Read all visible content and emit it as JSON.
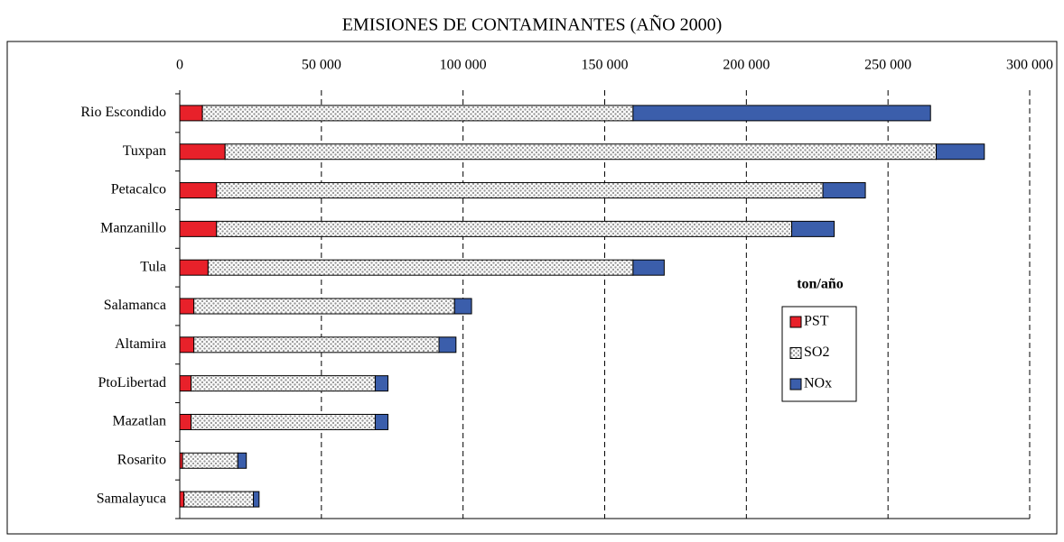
{
  "chart_data": {
    "type": "stacked_barh",
    "title": "EMISIONES DE CONTAMINANTES (AÑO 2000)",
    "categories": [
      "Rio Escondido",
      "Tuxpan",
      "Petacalco",
      "Manzanillo",
      "Tula",
      "Salamanca",
      "Altamira",
      "PtoLibertad",
      "Mazatlan",
      "Rosarito",
      "Samalayuca"
    ],
    "series": [
      {
        "name": "PST",
        "color": "#e8212a",
        "values": [
          8000,
          16000,
          13000,
          13000,
          10000,
          5000,
          5000,
          4000,
          4000,
          1000,
          1500
        ]
      },
      {
        "name": "SO2",
        "color": "#9a9a9a",
        "pattern": "dots",
        "values": [
          152000,
          251000,
          214000,
          203000,
          150000,
          92000,
          86500,
          65000,
          65000,
          19500,
          24500
        ]
      },
      {
        "name": "NOx",
        "color": "#3b5eab",
        "values": [
          105000,
          17000,
          15000,
          15000,
          11000,
          6000,
          6000,
          4500,
          4500,
          3000,
          2000
        ]
      }
    ],
    "xlim": [
      0,
      300000
    ],
    "xticks": [
      0,
      {
        "value": 50000,
        "label": "50 000"
      },
      {
        "value": 100000,
        "label": "100 000"
      },
      {
        "value": 150000,
        "label": "150 000"
      },
      {
        "value": 200000,
        "label": "200 000"
      },
      {
        "value": 250000,
        "label": "250 000"
      },
      {
        "value": 300000,
        "label": "300 000"
      }
    ],
    "grid": true,
    "legend_title": "ton/año",
    "legend": "right"
  }
}
